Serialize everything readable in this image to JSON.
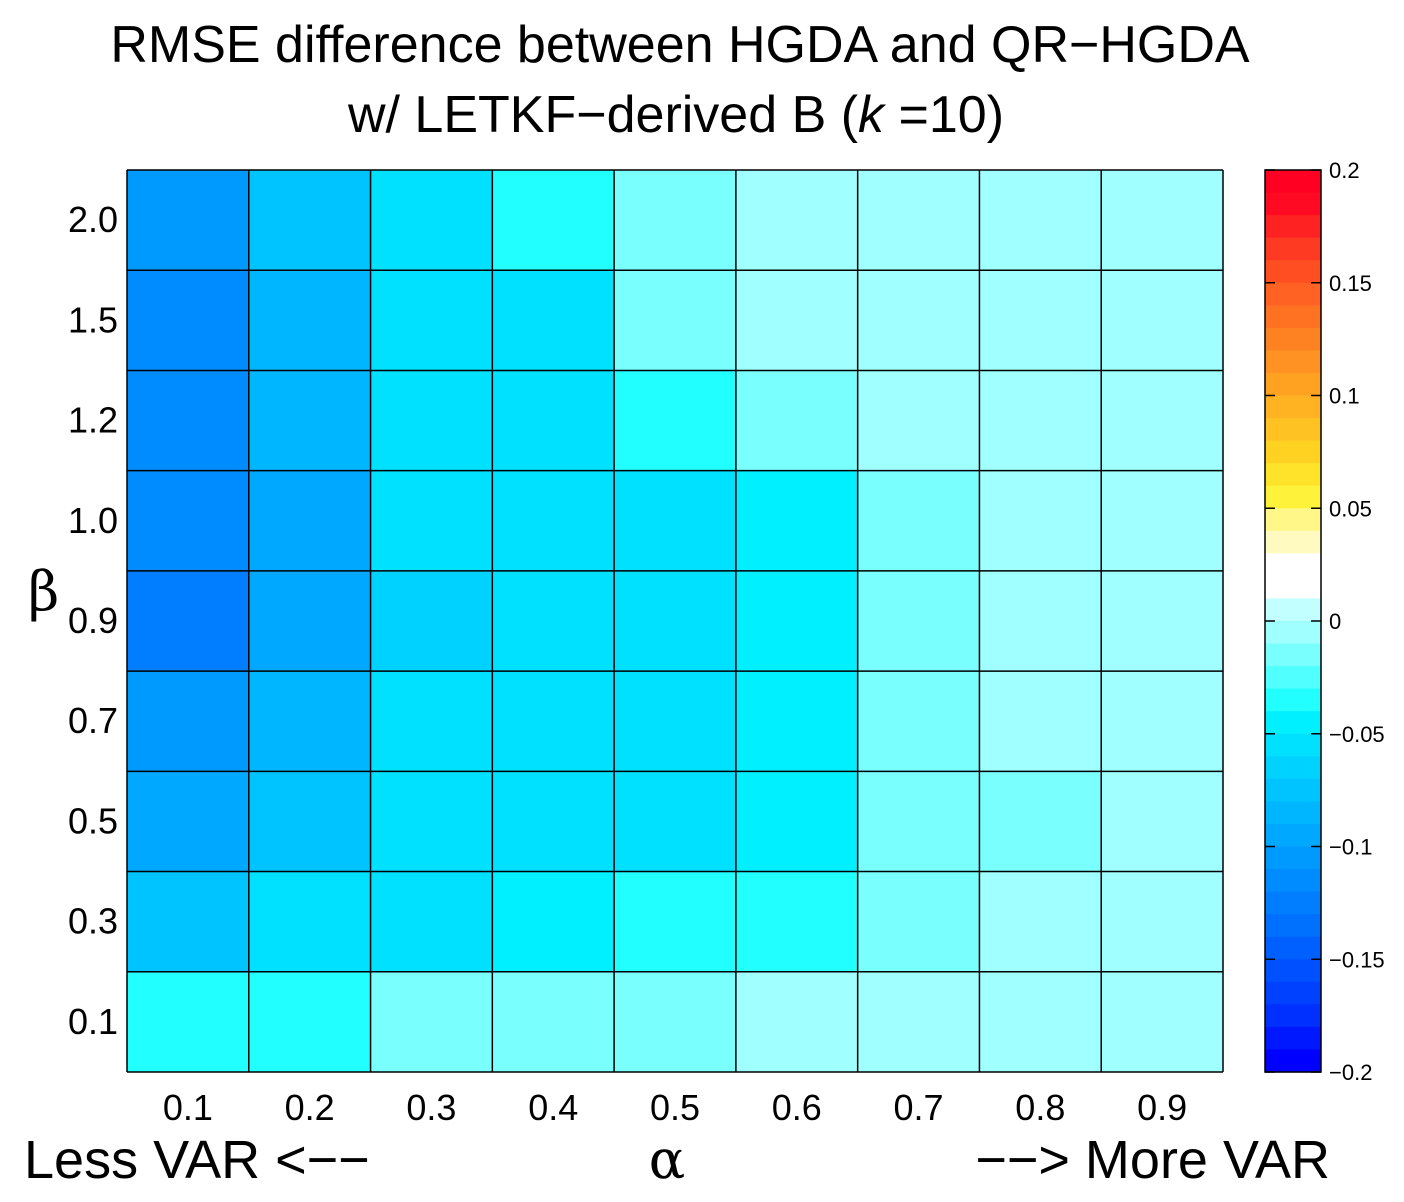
{
  "chart_data": {
    "type": "heatmap",
    "title": [
      "RMSE difference between HGDA and QR−HGDA",
      "w/ LETKF−derived B (",
      "k",
      " =10)"
    ],
    "x": {
      "label": "α",
      "label_left": "Less VAR <−−",
      "label_right": "−−> More VAR",
      "ticks": [
        "0.1",
        "0.2",
        "0.3",
        "0.4",
        "0.5",
        "0.6",
        "0.7",
        "0.8",
        "0.9"
      ]
    },
    "y": {
      "label": "β",
      "ticks": [
        "0.1",
        "0.3",
        "0.5",
        "0.7",
        "0.9",
        "1.0",
        "1.2",
        "1.5",
        "2.0"
      ]
    },
    "values_rows_beta_top_to_bottom": [
      [
        -0.105,
        -0.07,
        -0.055,
        -0.035,
        -0.02,
        0.0,
        0.0,
        0.0,
        0.0
      ],
      [
        -0.12,
        -0.085,
        -0.055,
        -0.05,
        -0.02,
        0.0,
        0.0,
        0.0,
        0.0
      ],
      [
        -0.12,
        -0.085,
        -0.055,
        -0.055,
        -0.035,
        -0.02,
        0.0,
        0.0,
        0.0
      ],
      [
        -0.12,
        -0.09,
        -0.055,
        -0.055,
        -0.055,
        -0.04,
        -0.02,
        0.0,
        0.0
      ],
      [
        -0.125,
        -0.09,
        -0.065,
        -0.055,
        -0.055,
        -0.04,
        -0.02,
        0.0,
        0.0
      ],
      [
        -0.11,
        -0.085,
        -0.055,
        -0.055,
        -0.055,
        -0.04,
        -0.02,
        0.0,
        0.0
      ],
      [
        -0.095,
        -0.075,
        -0.055,
        -0.055,
        -0.055,
        -0.04,
        -0.02,
        -0.02,
        0.0
      ],
      [
        -0.07,
        -0.055,
        -0.055,
        -0.045,
        -0.035,
        -0.035,
        -0.02,
        0.0,
        0.0
      ],
      [
        -0.035,
        -0.035,
        -0.02,
        -0.02,
        -0.02,
        0.0,
        0.0,
        0.0,
        0.0
      ]
    ],
    "colorbar": {
      "range": [
        -0.2,
        0.2
      ],
      "ticks": [
        "0.2",
        "0.15",
        "0.1",
        "0.05",
        "0",
        "−0.05",
        "−0.1",
        "−0.15",
        "−0.2"
      ],
      "tick_values": [
        0.2,
        0.15,
        0.1,
        0.05,
        0,
        -0.05,
        -0.1,
        -0.15,
        -0.2
      ],
      "colors_top_to_bottom": [
        "#FF0022",
        "#FF0A22",
        "#FF2222",
        "#FF3A22",
        "#FF4E22",
        "#FF6222",
        "#FF7222",
        "#FF8222",
        "#FF9222",
        "#FFA222",
        "#FFB222",
        "#FFC222",
        "#FFD222",
        "#FFE22A",
        "#FFF23A",
        "#FFF888",
        "#FFFBC0",
        "#FFFFFF",
        "#FFFFFF",
        "#C2FFFF",
        "#A0FFFF",
        "#7AFFFF",
        "#50FFFF",
        "#22FFFF",
        "#00F0FF",
        "#00E0FF",
        "#00D2FF",
        "#00C4FF",
        "#00B6FF",
        "#00A8FF",
        "#009AFF",
        "#008CFF",
        "#007EFF",
        "#0070FF",
        "#0060FF",
        "#0050FF",
        "#0040FF",
        "#0030FF",
        "#0018FF",
        "#0000FF"
      ]
    }
  }
}
